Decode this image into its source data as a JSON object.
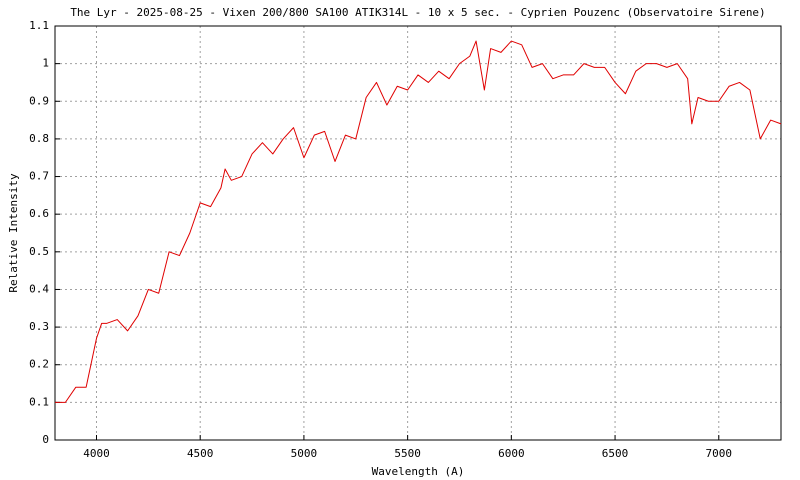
{
  "chart_data": {
    "type": "line",
    "title": "The Lyr - 2025-08-25 - Vixen 200/800 SA100 ATIK314L - 10 x 5 sec. - Cyprien Pouzenc (Observatoire Sirene)",
    "x_label": "Wavelength (A)",
    "y_label": "Relative Intensity",
    "x": [
      3800,
      3850,
      3900,
      3950,
      4000,
      4025,
      4050,
      4100,
      4150,
      4200,
      4250,
      4300,
      4350,
      4400,
      4450,
      4500,
      4550,
      4600,
      4620,
      4650,
      4700,
      4750,
      4800,
      4850,
      4900,
      4950,
      5000,
      5050,
      5100,
      5150,
      5200,
      5250,
      5300,
      5350,
      5400,
      5450,
      5500,
      5550,
      5600,
      5650,
      5700,
      5750,
      5800,
      5830,
      5870,
      5900,
      5950,
      6000,
      6050,
      6100,
      6150,
      6200,
      6250,
      6300,
      6350,
      6400,
      6450,
      6500,
      6550,
      6600,
      6650,
      6700,
      6750,
      6800,
      6850,
      6870,
      6900,
      6950,
      7000,
      7050,
      7100,
      7150,
      7200,
      7250,
      7300
    ],
    "series": [
      {
        "name": "spectrum",
        "color": "#e00000",
        "values": [
          0.1,
          0.1,
          0.14,
          0.14,
          0.27,
          0.31,
          0.31,
          0.32,
          0.29,
          0.33,
          0.4,
          0.39,
          0.5,
          0.49,
          0.55,
          0.63,
          0.62,
          0.67,
          0.72,
          0.69,
          0.7,
          0.76,
          0.79,
          0.76,
          0.8,
          0.83,
          0.75,
          0.81,
          0.82,
          0.74,
          0.81,
          0.8,
          0.91,
          0.95,
          0.89,
          0.94,
          0.93,
          0.97,
          0.95,
          0.98,
          0.96,
          1.0,
          1.02,
          1.06,
          0.93,
          1.04,
          1.03,
          1.06,
          1.05,
          0.99,
          1.0,
          0.96,
          0.97,
          0.97,
          1.0,
          0.99,
          0.99,
          0.95,
          0.92,
          0.98,
          1.0,
          1.0,
          0.99,
          1.0,
          0.96,
          0.84,
          0.91,
          0.9,
          0.9,
          0.94,
          0.95,
          0.93,
          0.8,
          0.85,
          0.84
        ]
      }
    ],
    "xlim": [
      3800,
      7300
    ],
    "ylim": [
      0,
      1.1
    ],
    "xticks": [
      4000,
      4500,
      5000,
      5500,
      6000,
      6500,
      7000
    ],
    "yticks": [
      0,
      0.1,
      0.2,
      0.3,
      0.4,
      0.5,
      0.6,
      0.7,
      0.8,
      0.9,
      1,
      1.1
    ],
    "grid": true
  }
}
